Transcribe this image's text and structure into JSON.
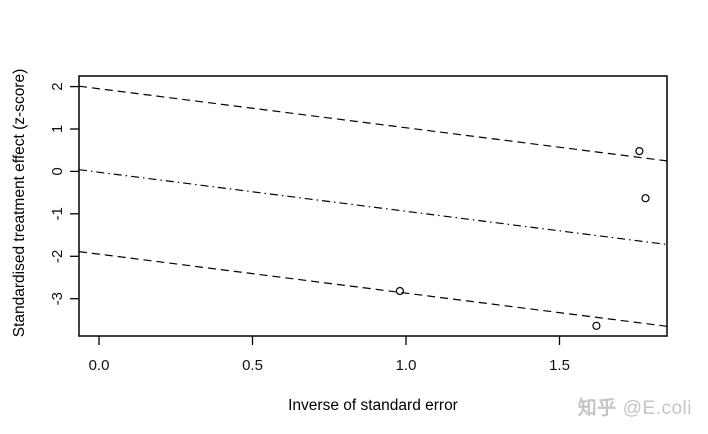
{
  "figure": {
    "background": "#ffffff"
  },
  "chart_data": {
    "type": "scatter",
    "title": "",
    "xlabel": "Inverse of standard error",
    "ylabel": "Standardised treatment effect (z-score)",
    "xlim": [
      -0.065,
      1.85
    ],
    "ylim": [
      -3.88,
      2.25
    ],
    "grid": false,
    "legend": null,
    "x_ticks": [
      {
        "label": "0.0",
        "value": 0.0
      },
      {
        "label": "0.5",
        "value": 0.5
      },
      {
        "label": "1.0",
        "value": 1.0
      },
      {
        "label": "1.5",
        "value": 1.5
      }
    ],
    "y_ticks": [
      {
        "label": "2",
        "value": 2
      },
      {
        "label": "1",
        "value": 1
      },
      {
        "label": "0",
        "value": 0
      },
      {
        "label": "-1",
        "value": -1
      },
      {
        "label": "-2",
        "value": -2
      },
      {
        "label": "-3",
        "value": -3
      }
    ],
    "points": [
      {
        "x": 1.76,
        "y": 0.48
      },
      {
        "x": 1.78,
        "y": -0.63
      },
      {
        "x": 0.98,
        "y": -2.82
      },
      {
        "x": 1.62,
        "y": -3.64
      }
    ],
    "marker": "open-circle",
    "reference_lines": [
      {
        "name": "upper-limit-line",
        "slope": -0.92,
        "intercept": 1.95,
        "style": "dashed"
      },
      {
        "name": "center-regression-line",
        "slope": -0.92,
        "intercept": -0.02,
        "style": "dashdot"
      },
      {
        "name": "lower-limit-line",
        "slope": -0.92,
        "intercept": -1.95,
        "style": "dashed"
      }
    ],
    "colors": {
      "axis": "#000000",
      "line": "#000000",
      "marker": "#000000",
      "text": "#000000"
    }
  },
  "watermark": {
    "brand": "知乎",
    "handle": "@E.coli",
    "color": "#c5c5c5"
  }
}
